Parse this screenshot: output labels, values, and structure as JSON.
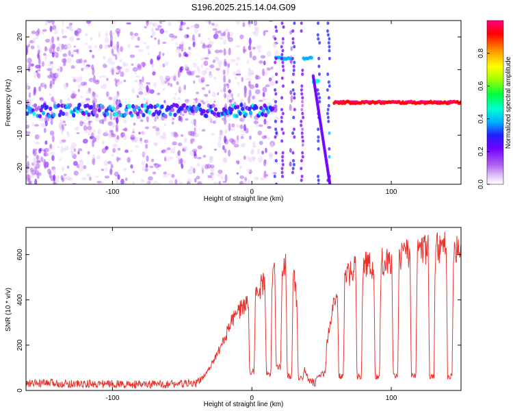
{
  "figure": {
    "title": "S196.2025.215.14.04.G09"
  },
  "chart_data": [
    {
      "type": "heatmap",
      "title": "S196.2025.215.14.04.G09",
      "xlabel": "Height of straight line (km)",
      "ylabel": "Frequency (Hz)",
      "xlim": [
        -162,
        150
      ],
      "ylim": [
        -25,
        25
      ],
      "x_ticks": [
        -100,
        0,
        100
      ],
      "x_tick_labels": [
        "-100",
        "0",
        "100"
      ],
      "y_ticks": [
        -20,
        -10,
        0,
        10,
        20
      ],
      "y_tick_labels": [
        "-20",
        "-10",
        "0",
        "10",
        "20"
      ],
      "colorbar": {
        "label": "Normalized spectral amplitude",
        "range": [
          0,
          1
        ],
        "ticks": [
          0,
          0.2,
          0.4,
          0.6,
          0.8
        ],
        "tick_labels": [
          "0.0",
          "0.2",
          "0.4",
          "0.6",
          "0.8"
        ],
        "colormap": [
          "#ffffff",
          "#e8d4f8",
          "#b060f0",
          "#7000ff",
          "#2020ff",
          "#00b0ff",
          "#00ffd0",
          "#00ff40",
          "#a0ff00",
          "#ffff00",
          "#ff9000",
          "#ff0000",
          "#ff0080"
        ]
      },
      "features": [
        {
          "x_range": [
            -162,
            15
          ],
          "frequency": -2.5,
          "amplitude": 0.35,
          "note": "noisy band"
        },
        {
          "x_range": [
            17,
            27
          ],
          "frequency": 13.5,
          "amplitude": 0.45
        },
        {
          "x_range": [
            37,
            43
          ],
          "frequency": 13.5,
          "amplitude": 0.45
        },
        {
          "x_range": [
            44,
            48
          ],
          "frequency": 6.5,
          "amplitude": 0.5
        },
        {
          "x_range": [
            59,
            150
          ],
          "frequency": 0,
          "amplitude": 0.95
        }
      ],
      "grid": false
    },
    {
      "type": "line",
      "xlabel": "Height of straight line (km)",
      "ylabel": "SNR (10 * v/v)",
      "xlim": [
        -162,
        150
      ],
      "ylim": [
        0,
        720
      ],
      "x_ticks": [
        -100,
        0,
        100
      ],
      "x_tick_labels": [
        "-100",
        "0",
        "100"
      ],
      "y_ticks": [
        0,
        200,
        400,
        600
      ],
      "y_tick_labels": [
        "0",
        "200",
        "400",
        "600"
      ],
      "line_color": "#e8302a",
      "series": [
        {
          "x": [
            -162,
            -140,
            -120,
            -100,
            -80,
            -60,
            -40,
            -35,
            -30,
            -25,
            -20,
            -15,
            -10,
            -5,
            0,
            5,
            10,
            15,
            20,
            25,
            30,
            35,
            40,
            45,
            50,
            55,
            60,
            65,
            70,
            75,
            80,
            90,
            100,
            110,
            120,
            130,
            140,
            150
          ],
          "y": [
            30,
            32,
            28,
            30,
            25,
            28,
            30,
            60,
            100,
            160,
            220,
            300,
            340,
            380,
            420,
            450,
            480,
            500,
            540,
            560,
            560,
            150,
            50,
            30,
            80,
            250,
            420,
            480,
            520,
            540,
            550,
            560,
            580,
            600,
            620,
            620,
            630,
            640
          ]
        }
      ],
      "dropouts": [
        {
          "x": 0,
          "low": 70
        },
        {
          "x": 12,
          "low": 60
        },
        {
          "x": 19,
          "low": 90
        },
        {
          "x": 27,
          "low": 50
        },
        {
          "x": 35,
          "low": 40
        },
        {
          "x": 51,
          "low": 60
        },
        {
          "x": 64,
          "low": 50
        },
        {
          "x": 77,
          "low": 50
        },
        {
          "x": 90,
          "low": 50
        },
        {
          "x": 103,
          "low": 50
        },
        {
          "x": 116,
          "low": 50
        },
        {
          "x": 129,
          "low": 50
        },
        {
          "x": 142,
          "low": 50
        }
      ],
      "grid": false
    }
  ]
}
